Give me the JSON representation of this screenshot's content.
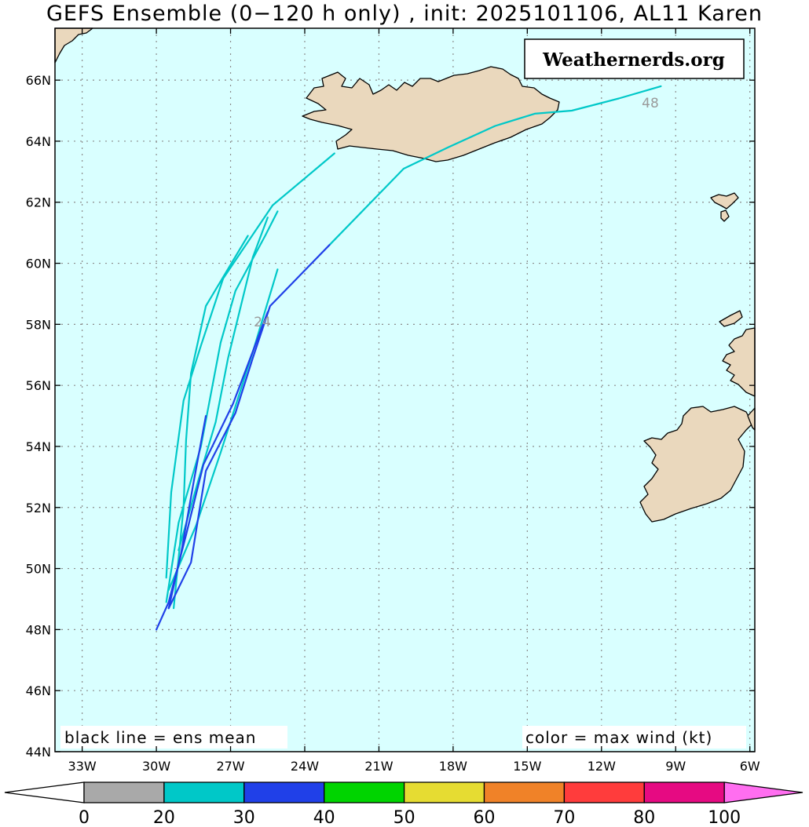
{
  "title": "GEFS Ensemble (0−120 h only) , init: 2025101106, AL11 Karen",
  "watermark": "Weathernerds.org",
  "note_left": "black line = ens mean",
  "note_right": "color = max wind (kt)",
  "lat_labels": [
    "66N",
    "64N",
    "62N",
    "60N",
    "58N",
    "56N",
    "54N",
    "52N",
    "50N",
    "48N",
    "46N",
    "44N"
  ],
  "lon_labels": [
    "33W",
    "30W",
    "27W",
    "24W",
    "21W",
    "18W",
    "15W",
    "12W",
    "9W",
    "6W"
  ],
  "hour_labels": [
    "24",
    "48"
  ],
  "colors": {
    "ocean": "#d9ffff",
    "land": "#ead8bd",
    "gray": "#a9a9a9",
    "cyan": "#00c8c8",
    "blue": "#2040e8",
    "green": "#00d400",
    "yellow": "#e6dc32",
    "orange": "#f08228",
    "red": "#ff3c3c",
    "magenta": "#e60a82",
    "pink": "#ff6ef0"
  },
  "colorbar": {
    "ticks": [
      "0",
      "20",
      "30",
      "40",
      "50",
      "60",
      "70",
      "80",
      "100"
    ],
    "bins": [
      "gray",
      "cyan",
      "blue",
      "green",
      "yellow",
      "orange",
      "red",
      "magenta"
    ]
  },
  "tracks": [
    {
      "color": "cyan",
      "points": [
        [
          -29.6,
          49.7
        ],
        [
          -29.4,
          52.5
        ],
        [
          -28.9,
          55.5
        ],
        [
          -28.2,
          57.3
        ],
        [
          -27.3,
          59.5
        ],
        [
          -25.3,
          61.9
        ],
        [
          -22.8,
          63.6
        ]
      ]
    },
    {
      "color": "cyan",
      "points": [
        [
          -29.3,
          48.7
        ],
        [
          -28.9,
          52.0
        ],
        [
          -28.8,
          54.2
        ],
        [
          -28.6,
          56.4
        ],
        [
          -28.0,
          58.6
        ],
        [
          -26.3,
          60.9
        ]
      ]
    },
    {
      "color": "cyan",
      "points": [
        [
          -29.6,
          48.9
        ],
        [
          -29.1,
          51.5
        ],
        [
          -28.2,
          54.0
        ],
        [
          -27.4,
          57.4
        ],
        [
          -26.8,
          59.1
        ],
        [
          -25.6,
          60.9
        ],
        [
          -25.1,
          61.7
        ]
      ]
    },
    {
      "color": "cyan",
      "points": [
        [
          -29.1,
          50.6
        ],
        [
          -28.3,
          52.9
        ],
        [
          -27.6,
          54.8
        ],
        [
          -27.1,
          56.9
        ],
        [
          -26.1,
          60.2
        ],
        [
          -25.5,
          61.5
        ]
      ]
    },
    {
      "color": "cyan",
      "points": [
        [
          -29.5,
          49.3
        ],
        [
          -28.4,
          51.4
        ],
        [
          -27.4,
          53.8
        ],
        [
          -26.1,
          57.1
        ],
        [
          -25.1,
          59.8
        ]
      ]
    },
    {
      "color": "cyan",
      "points": [
        [
          -23.0,
          60.6
        ],
        [
          -20.0,
          63.1
        ],
        [
          -18.2,
          63.8
        ],
        [
          -16.3,
          64.5
        ],
        [
          -14.7,
          64.9
        ],
        [
          -13.2,
          65.0
        ],
        [
          -11.3,
          65.4
        ],
        [
          -9.6,
          65.8
        ]
      ]
    },
    {
      "color": "blue",
      "points": [
        [
          -30.0,
          48.0
        ],
        [
          -29.5,
          48.9
        ],
        [
          -28.8,
          51.1
        ],
        [
          -28.1,
          53.4
        ],
        [
          -26.9,
          55.4
        ],
        [
          -25.5,
          58.4
        ]
      ]
    },
    {
      "color": "blue",
      "points": [
        [
          -29.5,
          48.7
        ],
        [
          -28.6,
          50.2
        ],
        [
          -28.3,
          51.7
        ],
        [
          -28.0,
          53.2
        ],
        [
          -26.8,
          55.1
        ],
        [
          -26.1,
          56.9
        ],
        [
          -25.4,
          58.6
        ],
        [
          -23.0,
          60.6
        ]
      ]
    },
    {
      "color": "blue",
      "points": [
        [
          -29.5,
          48.7
        ],
        [
          -29.0,
          50.5
        ],
        [
          -28.5,
          52.8
        ],
        [
          -28.0,
          55.0
        ]
      ]
    }
  ]
}
